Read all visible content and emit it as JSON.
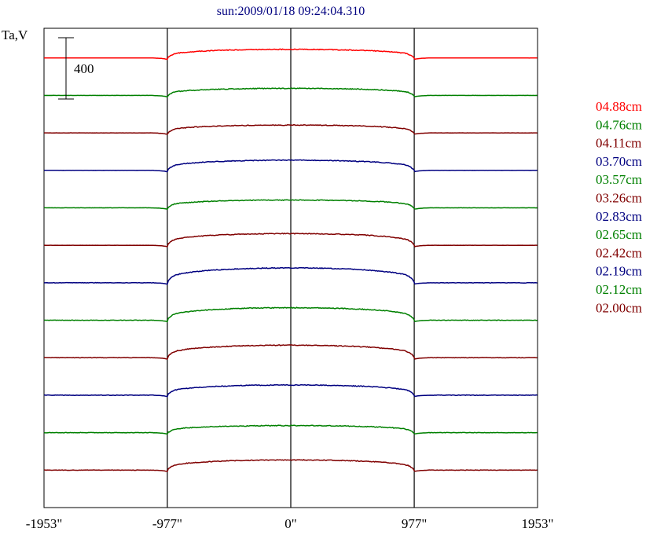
{
  "chart_data": {
    "type": "line",
    "title": "sun:2009/01/18 09:24:04.310",
    "ylabel": "Ta,V",
    "scale_bar_label": "400",
    "scale_bar_value": 400,
    "x_ticks": [
      {
        "value": -1953,
        "label": "-1953\""
      },
      {
        "value": -977,
        "label": "-977\""
      },
      {
        "value": 0,
        "label": "0\""
      },
      {
        "value": 977,
        "label": "977\""
      },
      {
        "value": 1953,
        "label": "1953\""
      }
    ],
    "xlim": [
      -1953,
      1953
    ],
    "vertical_lines_at": [
      -977,
      0,
      977
    ],
    "series": [
      {
        "name": "04.88cm",
        "color": "#ff0000",
        "offset": 0,
        "disk_height": 110
      },
      {
        "name": "04.76cm",
        "color": "#008000",
        "offset": -480,
        "disk_height": 90
      },
      {
        "name": "04.11cm",
        "color": "#800000",
        "offset": -960,
        "disk_height": 100
      },
      {
        "name": "03.70cm",
        "color": "#000080",
        "offset": -1440,
        "disk_height": 130
      },
      {
        "name": "03.57cm",
        "color": "#008000",
        "offset": -1920,
        "disk_height": 100
      },
      {
        "name": "03.26cm",
        "color": "#800000",
        "offset": -2400,
        "disk_height": 150
      },
      {
        "name": "02.83cm",
        "color": "#000080",
        "offset": -2880,
        "disk_height": 190
      },
      {
        "name": "02.65cm",
        "color": "#008000",
        "offset": -3360,
        "disk_height": 160
      },
      {
        "name": "02.42cm",
        "color": "#800000",
        "offset": -3840,
        "disk_height": 160
      },
      {
        "name": "02.19cm",
        "color": "#000080",
        "offset": -4320,
        "disk_height": 130
      },
      {
        "name": "02.12cm",
        "color": "#008000",
        "offset": -4800,
        "disk_height": 90
      },
      {
        "name": "02.00cm",
        "color": "#800000",
        "offset": -5280,
        "disk_height": 130
      }
    ],
    "ylim": [
      -5760,
      380
    ],
    "grid": false,
    "legend": "right"
  }
}
